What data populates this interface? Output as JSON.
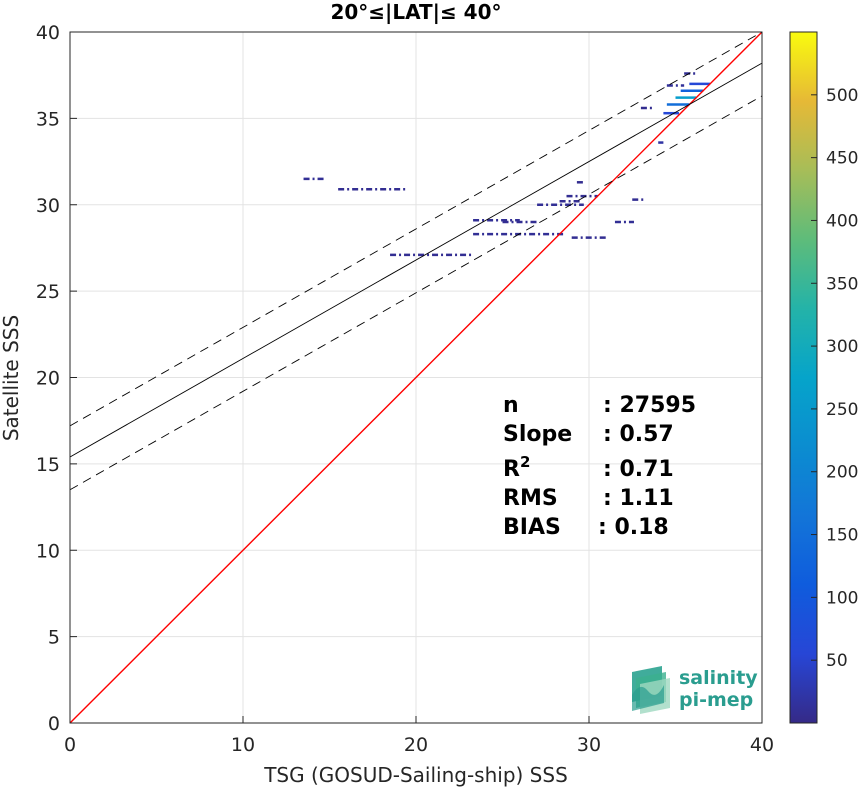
{
  "chart_data": {
    "type": "heatmap",
    "title": "20°≤|LAT|≤ 40°",
    "xlabel": "TSG (GOSUD-Sailing-ship) SSS",
    "ylabel": "Satellite SSS",
    "xlim": [
      0,
      40
    ],
    "ylim": [
      0,
      40
    ],
    "xticks": [
      0,
      10,
      20,
      30,
      40
    ],
    "yticks": [
      0,
      5,
      10,
      15,
      20,
      25,
      30,
      35,
      40
    ],
    "grid": true,
    "colorbar": {
      "min": 0,
      "max": 550,
      "ticks": [
        50,
        100,
        150,
        200,
        250,
        300,
        350,
        400,
        450,
        500
      ],
      "colormap": "parula"
    },
    "lines": [
      {
        "name": "1:1",
        "slope": 1,
        "intercept": 0,
        "color": "#ff0000",
        "style": "solid"
      },
      {
        "name": "fit",
        "slope": 0.57,
        "intercept": 15.4,
        "color": "#000000",
        "style": "solid"
      },
      {
        "name": "fit+",
        "slope": 0.57,
        "intercept": 17.2,
        "color": "#000000",
        "style": "dashed"
      },
      {
        "name": "fit-",
        "slope": 0.57,
        "intercept": 13.5,
        "color": "#000000",
        "style": "dashed"
      }
    ],
    "density_segments": [
      {
        "x0": 13.5,
        "x1": 14.8,
        "y": 31.5,
        "count": 10
      },
      {
        "x0": 15.5,
        "x1": 19.5,
        "y": 30.9,
        "count": 8
      },
      {
        "x0": 18.5,
        "x1": 23.3,
        "y": 27.1,
        "count": 8
      },
      {
        "x0": 23.3,
        "x1": 26.0,
        "y": 29.1,
        "count": 10
      },
      {
        "x0": 25.0,
        "x1": 27.0,
        "y": 29.0,
        "count": 8
      },
      {
        "x0": 23.3,
        "x1": 28.6,
        "y": 28.3,
        "count": 10
      },
      {
        "x0": 27.0,
        "x1": 29.7,
        "y": 30.0,
        "count": 10
      },
      {
        "x0": 28.3,
        "x1": 29.5,
        "y": 30.2,
        "count": 8
      },
      {
        "x0": 29.0,
        "x1": 31.0,
        "y": 28.1,
        "count": 8
      },
      {
        "x0": 28.7,
        "x1": 30.5,
        "y": 30.5,
        "count": 8
      },
      {
        "x0": 29.3,
        "x1": 29.8,
        "y": 31.3,
        "count": 6
      },
      {
        "x0": 31.5,
        "x1": 32.6,
        "y": 29.0,
        "count": 10
      },
      {
        "x0": 32.5,
        "x1": 33.3,
        "y": 30.3,
        "count": 8
      },
      {
        "x0": 34.0,
        "x1": 34.3,
        "y": 33.6,
        "count": 20
      },
      {
        "x0": 33.0,
        "x1": 33.7,
        "y": 35.6,
        "count": 6
      },
      {
        "x0": 34.3,
        "x1": 35.2,
        "y": 35.3,
        "count": 60
      },
      {
        "x0": 34.5,
        "x1": 35.8,
        "y": 35.8,
        "count": 150
      },
      {
        "x0": 35.0,
        "x1": 36.2,
        "y": 36.2,
        "count": 260
      },
      {
        "x0": 35.3,
        "x1": 36.6,
        "y": 36.6,
        "count": 120
      },
      {
        "x0": 35.8,
        "x1": 37.0,
        "y": 37.0,
        "count": 60
      },
      {
        "x0": 35.5,
        "x1": 36.2,
        "y": 37.6,
        "count": 10
      },
      {
        "x0": 34.5,
        "x1": 35.5,
        "y": 36.9,
        "count": 12
      }
    ],
    "annotations": [
      {
        "label": "n",
        "value": ": 27595"
      },
      {
        "label": "Slope",
        "value": ": 0.57"
      },
      {
        "label": "R",
        "sup": "2",
        "value": ": 0.71"
      },
      {
        "label": "RMS",
        "value": ": 1.11"
      },
      {
        "label": "BIAS",
        "value": ": 0.18"
      }
    ]
  },
  "logo": {
    "line1": "salinity",
    "line2": "pi-mep"
  }
}
